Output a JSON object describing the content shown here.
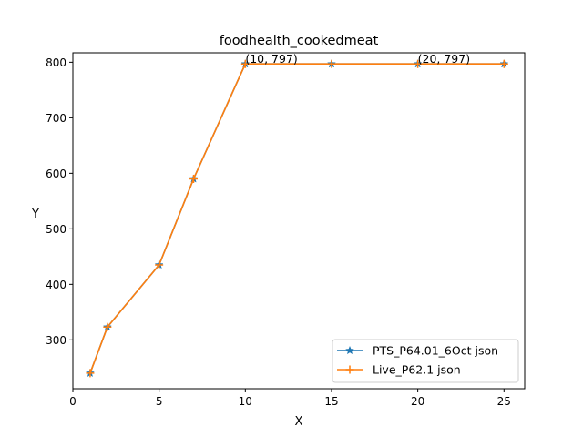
{
  "chart_data": {
    "type": "line",
    "title": "foodhealth_cookedmeat",
    "xlabel": "X",
    "ylabel": "Y",
    "xlim": [
      0,
      26.2
    ],
    "ylim": [
      212,
      817
    ],
    "xticks": [
      0,
      5,
      10,
      15,
      20,
      25
    ],
    "yticks": [
      300,
      400,
      500,
      600,
      700,
      800
    ],
    "x": [
      1,
      2,
      5,
      7,
      10,
      15,
      20,
      25
    ],
    "series": [
      {
        "name": "PTS_P64.01_6Oct json",
        "color": "#1f77b4",
        "marker": "star",
        "values": [
          240,
          323,
          435,
          590,
          797,
          797,
          797,
          797
        ]
      },
      {
        "name": "Live_P62.1 json",
        "color": "#ff7f0e",
        "marker": "plus",
        "values": [
          240,
          323,
          435,
          590,
          797,
          797,
          797,
          797
        ]
      }
    ],
    "annotations": [
      {
        "x": 10,
        "y": 797,
        "text": "(10, 797)"
      },
      {
        "x": 20,
        "y": 797,
        "text": "(20, 797)"
      }
    ],
    "legend_position": "lower-right",
    "grid": false
  }
}
